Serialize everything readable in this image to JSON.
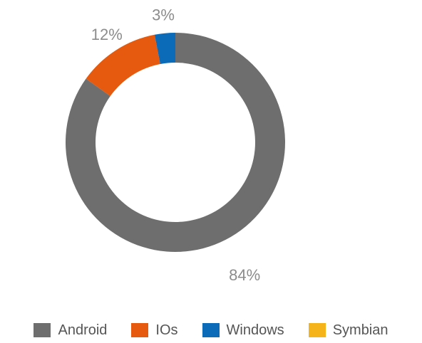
{
  "chart_data": {
    "type": "pie",
    "variant": "donut",
    "title": "",
    "legend_position": "bottom",
    "slices": [
      {
        "name": "Android",
        "value": 84,
        "label": "84%",
        "color": "#6e6e6e"
      },
      {
        "name": "IOs",
        "value": 12,
        "label": "12%",
        "color": "#e55a0e"
      },
      {
        "name": "Windows",
        "value": 3,
        "label": "3%",
        "color": "#0b6bb8"
      },
      {
        "name": "Symbian",
        "value": 0,
        "label": "",
        "color": "#f5b41a"
      }
    ]
  }
}
